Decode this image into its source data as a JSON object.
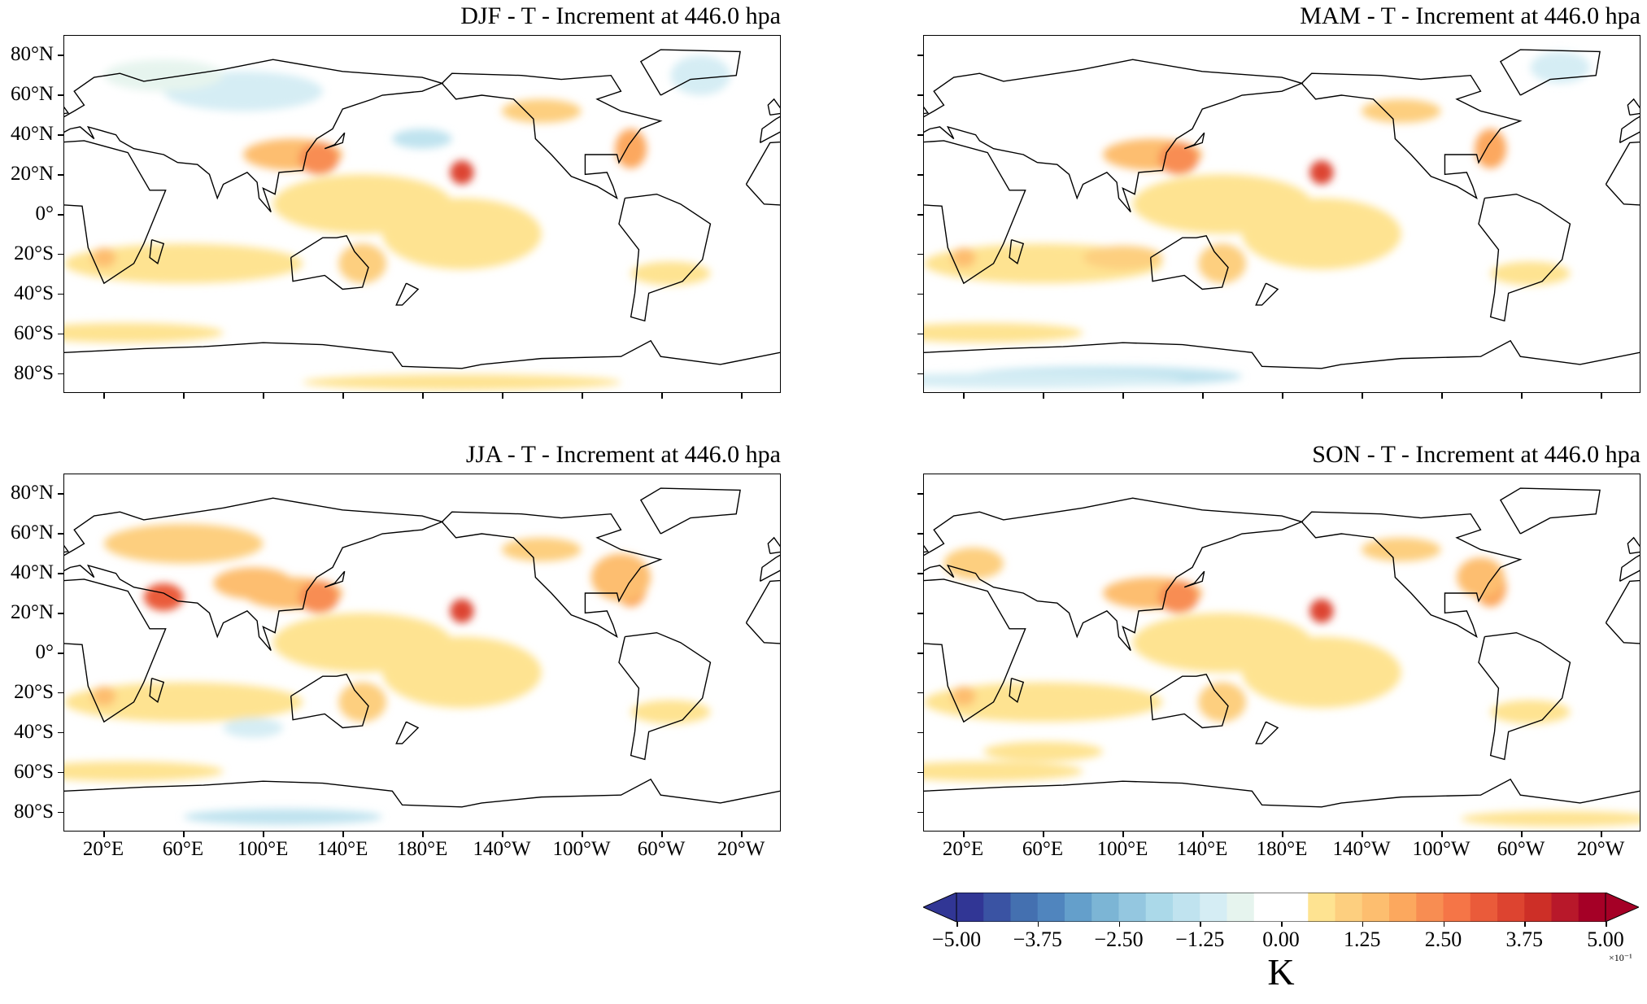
{
  "panels": [
    {
      "id": "djf",
      "title": "DJF - T - Increment at 446.0 hpa",
      "show_ylabels": true,
      "show_xlabels": false
    },
    {
      "id": "mam",
      "title": "MAM - T - Increment at 446.0 hpa",
      "show_ylabels": false,
      "show_xlabels": false
    },
    {
      "id": "jja",
      "title": "JJA - T - Increment at 446.0 hpa",
      "show_ylabels": true,
      "show_xlabels": true
    },
    {
      "id": "son",
      "title": "SON - T - Increment at 446.0 hpa",
      "show_ylabels": false,
      "show_xlabels": true
    }
  ],
  "map": {
    "projection": "PlateCarree, central longitude 180",
    "lon_range": [
      0,
      360
    ],
    "lat_range": [
      -90,
      90
    ],
    "yticks": [
      {
        "lat": 80,
        "label": "80°N"
      },
      {
        "lat": 60,
        "label": "60°N"
      },
      {
        "lat": 40,
        "label": "40°N"
      },
      {
        "lat": 20,
        "label": "20°N"
      },
      {
        "lat": 0,
        "label": "0°"
      },
      {
        "lat": -20,
        "label": "20°S"
      },
      {
        "lat": -40,
        "label": "40°S"
      },
      {
        "lat": -60,
        "label": "60°S"
      },
      {
        "lat": -80,
        "label": "80°S"
      }
    ],
    "xticks": [
      {
        "lon": 20,
        "label": "20°E"
      },
      {
        "lon": 60,
        "label": "60°E"
      },
      {
        "lon": 100,
        "label": "100°E"
      },
      {
        "lon": 140,
        "label": "140°E"
      },
      {
        "lon": 180,
        "label": "180°E"
      },
      {
        "lon": 220,
        "label": "140°W"
      },
      {
        "lon": 260,
        "label": "100°W"
      },
      {
        "lon": 300,
        "label": "60°W"
      },
      {
        "lon": 340,
        "label": "20°W"
      }
    ]
  },
  "colorbar": {
    "min": -5.0,
    "max": 5.0,
    "extend": "both",
    "tick_labels": [
      "−5.00",
      "−3.75",
      "−2.50",
      "−1.25",
      "0.00",
      "1.25",
      "2.50",
      "3.75",
      "5.00"
    ],
    "unit": "K",
    "exponent": "×10⁻¹",
    "colors": [
      "#313695",
      "#3a53a3",
      "#4470b0",
      "#5085be",
      "#649fcb",
      "#7cb5d5",
      "#94c7e0",
      "#abd9e9",
      "#c0e3ef",
      "#d5edf4",
      "#e6f4ee",
      "#ffffff",
      "#ffffff",
      "#fee391",
      "#fdcf7f",
      "#fdbe6f",
      "#fca85e",
      "#f88d52",
      "#f57547",
      "#ea5b3a",
      "#dd4430",
      "#cd2f27",
      "#b8182a",
      "#a50026"
    ],
    "under_color": "#313695",
    "over_color": "#a50026"
  }
}
